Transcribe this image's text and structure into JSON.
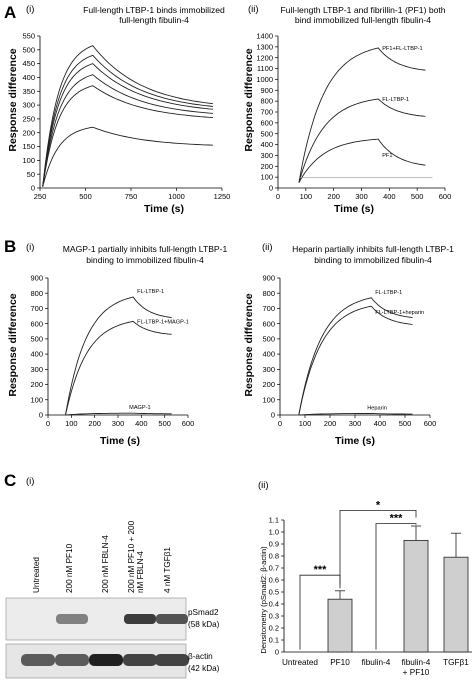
{
  "panel_letters": {
    "a": "A",
    "b": "B",
    "c": "C"
  },
  "sub_labels": {
    "i": "(i)",
    "ii": "(ii)"
  },
  "panels": {
    "a1": {
      "title1": "Full-length LTBP-1 binds immobilized",
      "title2": "full-length fibulin-4",
      "xlabel": "Time (s)",
      "ylabel": "Response difference",
      "xticks": [
        "250",
        "500",
        "750",
        "1000",
        "1250"
      ],
      "yticks": [
        "0",
        "50",
        "100",
        "150",
        "200",
        "250",
        "300",
        "350",
        "400",
        "450",
        "500",
        "550"
      ]
    },
    "a2": {
      "title1": "Full-length LTBP-1 and fibrillin-1 (PF1) both",
      "title2": "bind immobilized full-length fibulin-4",
      "xlabel": "Time (s)",
      "ylabel": "Response difference",
      "xticks": [
        "0",
        "100",
        "200",
        "300",
        "400",
        "500",
        "600"
      ],
      "yticks": [
        "0",
        "100",
        "200",
        "300",
        "400",
        "500",
        "600",
        "700",
        "800",
        "900",
        "1000",
        "1100",
        "1200",
        "1300",
        "1400"
      ],
      "annotations": {
        "pf1_fl": "PF1+FL-LTBP-1",
        "fl": "FL-LTBP-1",
        "pf1": "PF1"
      }
    },
    "b1": {
      "title1": "MAGP-1 partially inhibits full-length LTBP-1",
      "title2": "binding to immobilized fibulin-4",
      "xlabel": "Time (s)",
      "ylabel": "Response difference",
      "xticks": [
        "0",
        "100",
        "200",
        "300",
        "400",
        "500",
        "600"
      ],
      "yticks": [
        "0",
        "100",
        "200",
        "300",
        "400",
        "500",
        "600",
        "700",
        "800",
        "900"
      ],
      "annotations": {
        "fl": "FL-LTBP-1",
        "fl_magp": "FL-LTBP-1+MAGP-1",
        "magp": "MAGP-1"
      }
    },
    "b2": {
      "title1": "Heparin partially inhibits full-length LTBP-1",
      "title2": "binding to immobilized fibulin-4",
      "xlabel": "Time (s)",
      "ylabel": "Response difference",
      "xticks": [
        "0",
        "100",
        "200",
        "300",
        "400",
        "500",
        "600"
      ],
      "yticks": [
        "0",
        "100",
        "200",
        "300",
        "400",
        "500",
        "600",
        "700",
        "800",
        "900"
      ],
      "annotations": {
        "fl": "FL-LTBP-1",
        "fl_hep": "FL-LTBP-1+heparin",
        "hep": "Heparin"
      }
    },
    "c2": {
      "ylabel": "Densitometry (pSmad2: β-actin)",
      "yticks": [
        "0",
        "0.1",
        "0.2",
        "0.3",
        "0.4",
        "0.5",
        "0.6",
        "0.7",
        "0.8",
        "0.9",
        "1.0",
        "1.1"
      ],
      "cat_labels": [
        "Untreated",
        "PF10",
        "fibulin-4",
        "fibulin-4",
        "TGFβ1"
      ],
      "cat_label2": "+ PF10",
      "sig1": "***",
      "sig2": "*",
      "sig3": "***"
    }
  },
  "western_blot": {
    "lanes": [
      "Untreated",
      "200 nM PF10",
      "200 nM FBLN-4",
      "200 nM PF10 + 200",
      "nM FBLN-4",
      "4 nM TGFβ1"
    ],
    "band1_label": "pSmad2",
    "band1_size": "(58 kDa)",
    "band2_label": "β-actin",
    "band2_size": "(42 kDa)",
    "band_levels_pSmad2": [
      0,
      0.55,
      0,
      0.85,
      0.75
    ],
    "band_levels_actin": [
      0.7,
      0.7,
      0.95,
      0.8,
      0.8
    ]
  },
  "chart_data": [
    {
      "type": "line",
      "panel": "A(i)",
      "title": "Full-length LTBP-1 binds immobilized full-length fibulin-4",
      "xlabel": "Time (s)",
      "ylabel": "Response difference",
      "xlim": [
        250,
        1250
      ],
      "ylim": [
        0,
        550
      ],
      "injection_start": 265,
      "injection_end": 540,
      "series": [
        {
          "x": [
            265,
            540,
            1200
          ],
          "peak": 515,
          "end": 305
        },
        {
          "x": [
            265,
            540,
            1200
          ],
          "peak": 480,
          "end": 295
        },
        {
          "x": [
            265,
            540,
            1200
          ],
          "peak": 450,
          "end": 285
        },
        {
          "x": [
            265,
            540,
            1200
          ],
          "peak": 410,
          "end": 270
        },
        {
          "x": [
            265,
            540,
            1200
          ],
          "peak": 370,
          "end": 255
        },
        {
          "x": [
            265,
            540,
            1200
          ],
          "peak": 220,
          "end": 155
        }
      ]
    },
    {
      "type": "line",
      "panel": "A(ii)",
      "title": "Full-length LTBP-1 and fibrillin-1 (PF1) both bind immobilized full-length fibulin-4",
      "xlabel": "Time (s)",
      "ylabel": "Response difference",
      "xlim": [
        0,
        600
      ],
      "ylim": [
        0,
        1400
      ],
      "series": [
        {
          "name": "PF1+FL-LTBP-1",
          "start": 75,
          "peak_x": 360,
          "peak": 1290,
          "end_x": 530,
          "end": 1085
        },
        {
          "name": "FL-LTBP-1",
          "start": 75,
          "peak_x": 360,
          "peak": 820,
          "end_x": 530,
          "end": 660
        },
        {
          "name": "PF1",
          "start": 75,
          "peak_x": 360,
          "peak": 450,
          "end_x": 530,
          "end": 210
        },
        {
          "name": "",
          "baseline": 95
        }
      ]
    },
    {
      "type": "line",
      "panel": "B(i)",
      "title": "MAGP-1 partially inhibits full-length LTBP-1 binding to immobilized fibulin-4",
      "xlabel": "Time (s)",
      "ylabel": "Response difference",
      "xlim": [
        0,
        600
      ],
      "ylim": [
        0,
        900
      ],
      "series": [
        {
          "name": "FL-LTBP-1",
          "start": 75,
          "peak_x": 365,
          "peak": 775,
          "end_x": 530,
          "end": 640
        },
        {
          "name": "FL-LTBP-1+MAGP-1",
          "start": 75,
          "peak_x": 365,
          "peak": 615,
          "end_x": 530,
          "end": 530
        },
        {
          "name": "MAGP-1",
          "start": 75,
          "peak_x": 365,
          "peak": 12,
          "end_x": 530,
          "end": 8
        }
      ]
    },
    {
      "type": "line",
      "panel": "B(ii)",
      "title": "Heparin partially inhibits full-length LTBP-1 binding to immobilized fibulin-4",
      "xlabel": "Time (s)",
      "ylabel": "Response difference",
      "xlim": [
        0,
        600
      ],
      "ylim": [
        0,
        900
      ],
      "series": [
        {
          "name": "FL-LTBP-1",
          "start": 75,
          "peak_x": 365,
          "peak": 770,
          "end_x": 530,
          "end": 640
        },
        {
          "name": "FL-LTBP-1+heparin",
          "start": 75,
          "peak_x": 365,
          "peak": 715,
          "end_x": 530,
          "end": 595
        },
        {
          "name": "Heparin",
          "start": 75,
          "peak_x": 365,
          "peak": 10,
          "end_x": 530,
          "end": 6
        }
      ]
    },
    {
      "type": "bar",
      "panel": "C(ii)",
      "ylabel": "Densitometry (pSmad2: β-actin)",
      "ylim": [
        0,
        1.1
      ],
      "categories": [
        "Untreated",
        "PF10",
        "fibulin-4",
        "fibulin-4 + PF10",
        "TGFβ1"
      ],
      "values": [
        0,
        0.44,
        0,
        0.93,
        0.79
      ],
      "errors": [
        0,
        0.07,
        0,
        0.12,
        0.2
      ],
      "significance": [
        {
          "between": [
            "Untreated",
            "PF10"
          ],
          "label": "***"
        },
        {
          "between": [
            "PF10",
            "fibulin-4 + PF10"
          ],
          "label": "*"
        },
        {
          "between": [
            "fibulin-4",
            "fibulin-4 + PF10"
          ],
          "label": "***"
        }
      ]
    }
  ]
}
